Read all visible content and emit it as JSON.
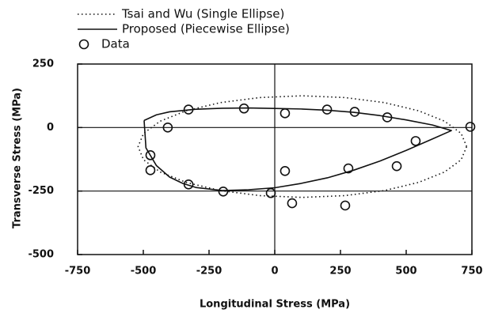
{
  "chart_data": {
    "type": "scatter",
    "xlabel": "Longitudinal Stress (MPa)",
    "ylabel": "Transverse Stress (MPa)",
    "xlim": [
      -750,
      750
    ],
    "ylim": [
      -500,
      250
    ],
    "xticks": [
      -750,
      -500,
      -250,
      0,
      250,
      500,
      750
    ],
    "yticks": [
      -500,
      -250,
      0,
      250
    ],
    "hlines": [
      0,
      -250
    ],
    "vlines": [
      0
    ],
    "curves": [
      {
        "name": "Tsai and Wu (Single Ellipse)",
        "style": "dotted",
        "color": "#111",
        "x": [
          730,
          709,
          646,
          547,
          418,
          267,
          105,
          -57,
          -208,
          -337,
          -436,
          -499,
          -520,
          -499,
          -436,
          -337,
          -208,
          -57,
          105,
          267,
          418,
          547,
          646,
          709,
          730
        ],
        "y": [
          -75,
          -23,
          25,
          66,
          98,
          118,
          125,
          118,
          98,
          66,
          25,
          -23,
          -75,
          -127,
          -175,
          -216,
          -248,
          -268,
          -275,
          -268,
          -248,
          -216,
          -175,
          -127,
          -75
        ]
      },
      {
        "name": "Proposed (Piecewise Ellipse)",
        "style": "solid",
        "color": "#111",
        "x": [
          -497,
          -450,
          -400,
          -300,
          -200,
          -100,
          0,
          100,
          200,
          300,
          400,
          500,
          600,
          672,
          600,
          500,
          400,
          300,
          200,
          100,
          0,
          -100,
          -200,
          -300,
          -350,
          -400,
          -450,
          -490,
          -497
        ],
        "y": [
          28,
          50,
          62,
          72,
          76,
          77,
          75,
          73,
          68,
          60,
          47,
          30,
          10,
          -12,
          -45,
          -90,
          -132,
          -168,
          -198,
          -220,
          -237,
          -245,
          -248,
          -236,
          -220,
          -195,
          -150,
          -80,
          28
        ]
      }
    ],
    "series": [
      {
        "name": "Data",
        "color": "#111",
        "x": [
          -328,
          -407,
          -117,
          39,
          199,
          304,
          428,
          744,
          536,
          -473,
          -473,
          -328,
          -196,
          -15,
          39,
          66,
          268,
          280,
          464
        ],
        "y": [
          71,
          0,
          75,
          56,
          71,
          62,
          40,
          3,
          -53,
          -109,
          -168,
          -224,
          -252,
          -258,
          -171,
          -298,
          -307,
          -161,
          -152
        ]
      }
    ]
  }
}
